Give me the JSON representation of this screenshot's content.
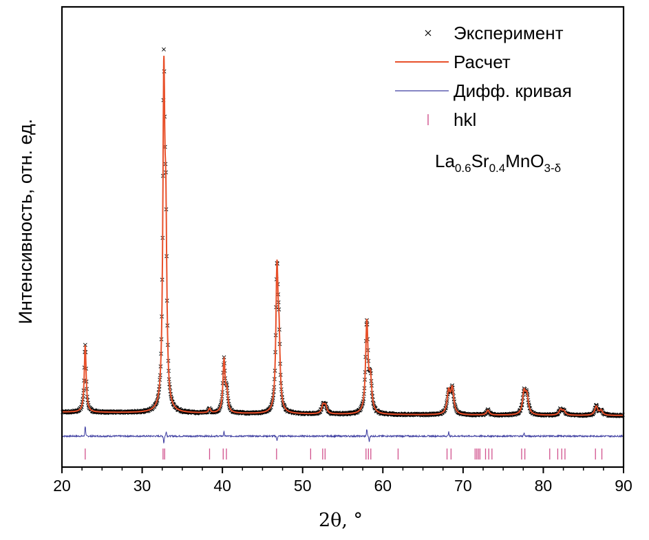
{
  "chart_data": {
    "type": "line",
    "xlabel": "2θ, °",
    "ylabel": "Интенсивность,  отн. ед.",
    "xlim": [
      20,
      90
    ],
    "x_ticks": [
      20,
      30,
      40,
      50,
      60,
      70,
      80,
      90
    ],
    "x_minor_step": 2.5,
    "y_ticks_shown": false,
    "grid": false,
    "legend_position": "top-right",
    "legend": [
      {
        "label": "Эксперимент",
        "symbol": "x-marker",
        "color": "#000000"
      },
      {
        "label": "Расчет",
        "symbol": "line",
        "color": "#e8502a"
      },
      {
        "label": "Дифф. кривая",
        "symbol": "line",
        "color": "#3c3ca0"
      },
      {
        "label": "hkl",
        "symbol": "tick",
        "color": "#d0508c"
      }
    ],
    "annotation": {
      "base": "La",
      "s1": "0.6",
      "el2": "Sr",
      "s2": "0.4",
      "el3": "MnO",
      "s3": "3-δ"
    },
    "background": {
      "start": 9.0,
      "end": 4.0,
      "curvature": 1.6
    },
    "peaks": [
      {
        "x": 22.9,
        "h": 97,
        "w": 0.14
      },
      {
        "x": 32.7,
        "h": 458,
        "w": 0.15
      },
      {
        "x": 32.95,
        "h": 225,
        "w": 0.15
      },
      {
        "x": 38.4,
        "h": 6,
        "w": 0.15
      },
      {
        "x": 40.2,
        "h": 75,
        "w": 0.16
      },
      {
        "x": 40.55,
        "h": 28,
        "w": 0.16
      },
      {
        "x": 46.8,
        "h": 197,
        "w": 0.16
      },
      {
        "x": 47.05,
        "h": 90,
        "w": 0.16
      },
      {
        "x": 52.55,
        "h": 12,
        "w": 0.2
      },
      {
        "x": 52.85,
        "h": 11,
        "w": 0.2
      },
      {
        "x": 58.0,
        "h": 131,
        "w": 0.18
      },
      {
        "x": 58.45,
        "h": 47,
        "w": 0.2
      },
      {
        "x": 68.2,
        "h": 32,
        "w": 0.22
      },
      {
        "x": 68.65,
        "h": 36,
        "w": 0.22
      },
      {
        "x": 73.1,
        "h": 7,
        "w": 0.2
      },
      {
        "x": 77.6,
        "h": 31,
        "w": 0.22
      },
      {
        "x": 77.95,
        "h": 26,
        "w": 0.22
      },
      {
        "x": 82.15,
        "h": 8,
        "w": 0.22
      },
      {
        "x": 82.55,
        "h": 6,
        "w": 0.22
      },
      {
        "x": 86.6,
        "h": 13,
        "w": 0.22
      },
      {
        "x": 87.2,
        "h": 7,
        "w": 0.22
      }
    ],
    "difference_baseline": -26,
    "difference_features": [
      {
        "x": 22.9,
        "amp": 15
      },
      {
        "x": 32.7,
        "amp": -10
      },
      {
        "x": 33.0,
        "amp": 7
      },
      {
        "x": 40.2,
        "amp": 6
      },
      {
        "x": 46.8,
        "amp": -7
      },
      {
        "x": 58.0,
        "amp": 10
      },
      {
        "x": 58.3,
        "amp": -8
      },
      {
        "x": 68.2,
        "amp": 6
      },
      {
        "x": 77.6,
        "amp": 5
      }
    ],
    "hkl_positions": [
      22.9,
      32.6,
      32.8,
      38.4,
      40.1,
      40.5,
      46.75,
      51.0,
      52.5,
      52.8,
      57.9,
      58.2,
      58.5,
      61.9,
      68.0,
      68.5,
      71.5,
      71.7,
      71.9,
      72.1,
      72.8,
      73.2,
      73.6,
      77.3,
      77.7,
      80.8,
      81.8,
      82.3,
      82.7,
      86.5,
      87.3
    ]
  }
}
